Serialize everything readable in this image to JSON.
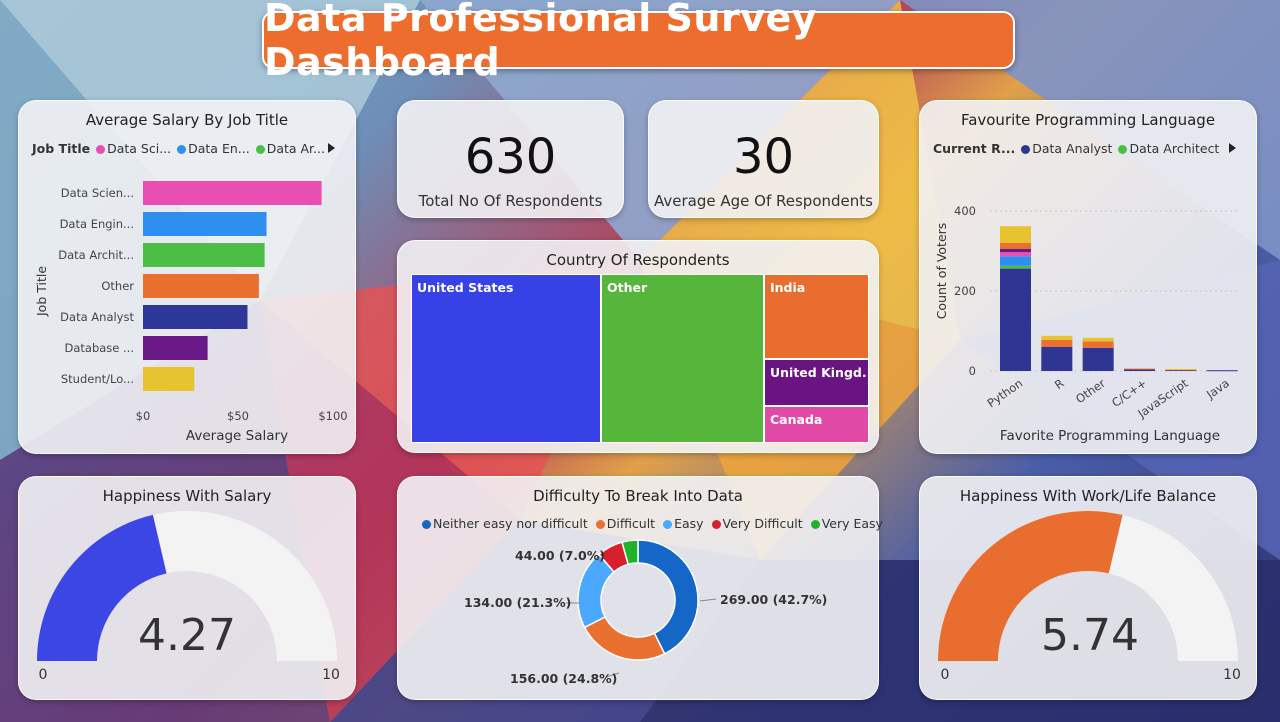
{
  "title": "Data Professional Survey Dashboard",
  "salary_chart": {
    "title": "Average Salary By Job Title",
    "legend_title": "Job Title",
    "legend_items": [
      {
        "label": "Data Sci...",
        "color": "#e84fb0"
      },
      {
        "label": "Data En...",
        "color": "#2f8ff0"
      },
      {
        "label": "Data Ar...",
        "color": "#4bbf45"
      }
    ],
    "ylabel": "Job Title",
    "xlabel": "Average Salary",
    "x_ticks": [
      "$0",
      "$50",
      "$100"
    ]
  },
  "kpi_respondents": {
    "value": "630",
    "label": "Total No Of Respondents"
  },
  "kpi_age": {
    "value": "30",
    "label": "Average Age Of Respondents"
  },
  "country_chart": {
    "title": "Country Of Respondents",
    "labels": {
      "us": "United States",
      "other": "Other",
      "india": "India",
      "uk": "United Kingd...",
      "canada": "Canada"
    }
  },
  "language_chart": {
    "title": "Favourite Programming Language",
    "legend_title": "Current R...",
    "legend_items": [
      {
        "label": "Data Analyst",
        "color": "#2e3593"
      },
      {
        "label": "Data Architect",
        "color": "#4bbf45"
      }
    ],
    "ylabel": "Count of Voters",
    "xlabel": "Favorite Programming Language",
    "y_ticks": [
      "0",
      "200",
      "400"
    ]
  },
  "happiness_salary": {
    "title": "Happiness With Salary",
    "value": "4.27",
    "min": "0",
    "max": "10",
    "fraction": 0.427,
    "color": "#3b46e4"
  },
  "difficulty_chart": {
    "title": "Difficulty To Break Into Data",
    "legend_items": [
      {
        "label": "Neither easy nor difficult",
        "color": "#1466c7"
      },
      {
        "label": "Difficult",
        "color": "#ea7030"
      },
      {
        "label": "Easy",
        "color": "#4aa8ff"
      },
      {
        "label": "Very Difficult",
        "color": "#d81f2e"
      },
      {
        "label": "Very Easy",
        "color": "#21b22a"
      }
    ],
    "data_labels": {
      "neither": "269.00 (42.7%)",
      "difficult": "156.00 (24.8%)",
      "easy": "134.00 (21.3%)",
      "very_difficult": "44.00 (7.0%)"
    }
  },
  "happiness_worklife": {
    "title": "Happiness With Work/Life Balance",
    "value": "5.74",
    "min": "0",
    "max": "10",
    "fraction": 0.574,
    "color": "#e86d2e"
  },
  "chart_data": [
    {
      "type": "bar",
      "orientation": "horizontal",
      "title": "Average Salary By Job Title",
      "xlabel": "Average Salary",
      "ylabel": "Job Title",
      "xlim": [
        0,
        100
      ],
      "categories": [
        "Data Scien...",
        "Data Engin...",
        "Data Archit...",
        "Other",
        "Data Analyst",
        "Database ...",
        "Student/Lo..."
      ],
      "values": [
        94,
        65,
        64,
        61,
        55,
        34,
        27
      ],
      "colors": [
        "#e84fb0",
        "#2f8ff0",
        "#4bbf45",
        "#ea7030",
        "#30379a",
        "#6a1a86",
        "#e6c430"
      ]
    },
    {
      "type": "bar",
      "stacked": true,
      "title": "Favourite Programming Language",
      "xlabel": "Favorite Programming Language",
      "ylabel": "Count of Voters",
      "ylim": [
        0,
        450
      ],
      "categories": [
        "Python",
        "R",
        "Other",
        "C/C++",
        "JavaScript",
        "Java"
      ],
      "series": [
        {
          "name": "Data Analyst",
          "color": "#2e3593",
          "values": [
            256,
            60,
            58,
            5,
            3,
            2
          ]
        },
        {
          "name": "Data Architect",
          "color": "#4bbf45",
          "values": [
            7,
            0,
            0,
            0,
            0,
            0
          ]
        },
        {
          "color": "#2f8ff0",
          "values": [
            24,
            0,
            0,
            0,
            0,
            0
          ]
        },
        {
          "color": "#e84fb0",
          "values": [
            10,
            0,
            0,
            0,
            0,
            0
          ]
        },
        {
          "color": "#6a1a86",
          "values": [
            8,
            0,
            0,
            0,
            0,
            0
          ]
        },
        {
          "color": "#ea7030",
          "values": [
            15,
            18,
            16,
            1,
            1,
            0
          ]
        },
        {
          "color": "#e6c430",
          "values": [
            42,
            10,
            9,
            0,
            1,
            0
          ]
        }
      ]
    },
    {
      "type": "pie",
      "donut": true,
      "title": "Difficulty To Break Into Data",
      "categories": [
        "Neither easy nor difficult",
        "Difficult",
        "Easy",
        "Very Difficult",
        "Very Easy"
      ],
      "values": [
        269,
        156,
        134,
        44,
        27
      ]
    },
    {
      "type": "treemap",
      "title": "Country Of Respondents",
      "categories": [
        "United States",
        "Other",
        "India",
        "United Kingd...",
        "Canada"
      ],
      "values": [
        260,
        220,
        70,
        30,
        25
      ]
    }
  ]
}
